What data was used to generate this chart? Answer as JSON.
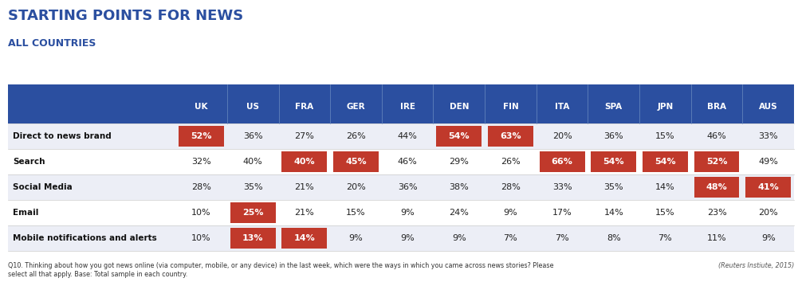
{
  "title": "STARTING POINTS FOR NEWS",
  "subtitle": "ALL COUNTRIES",
  "countries": [
    "UK",
    "US",
    "FRA",
    "GER",
    "IRE",
    "DEN",
    "FIN",
    "ITA",
    "SPA",
    "JPN",
    "BRA",
    "AUS"
  ],
  "rows": [
    {
      "label": "Direct to news brand",
      "values": [
        52,
        36,
        27,
        26,
        44,
        54,
        63,
        20,
        36,
        15,
        46,
        33
      ],
      "highlighted": [
        true,
        false,
        false,
        false,
        false,
        true,
        true,
        false,
        false,
        false,
        false,
        false
      ]
    },
    {
      "label": "Search",
      "values": [
        32,
        40,
        40,
        45,
        46,
        29,
        26,
        66,
        54,
        54,
        52,
        49
      ],
      "highlighted": [
        false,
        false,
        true,
        true,
        false,
        false,
        false,
        true,
        true,
        true,
        true,
        false
      ]
    },
    {
      "label": "Social Media",
      "values": [
        28,
        35,
        21,
        20,
        36,
        38,
        28,
        33,
        35,
        14,
        48,
        41
      ],
      "highlighted": [
        false,
        false,
        false,
        false,
        false,
        false,
        false,
        false,
        false,
        false,
        true,
        true
      ]
    },
    {
      "label": "Email",
      "values": [
        10,
        25,
        21,
        15,
        9,
        24,
        9,
        17,
        14,
        15,
        23,
        20
      ],
      "highlighted": [
        false,
        true,
        false,
        false,
        false,
        false,
        false,
        false,
        false,
        false,
        false,
        false
      ]
    },
    {
      "label": "Mobile notifications and alerts",
      "values": [
        10,
        13,
        14,
        9,
        9,
        9,
        7,
        7,
        8,
        7,
        11,
        9
      ],
      "highlighted": [
        false,
        true,
        true,
        false,
        false,
        false,
        false,
        false,
        false,
        false,
        false,
        false
      ]
    }
  ],
  "header_bg": "#2B4FA0",
  "highlight_color": "#C0392B",
  "normal_text_color": "#222222",
  "highlight_text_color": "#ffffff",
  "row_bg_even": "#ECEEF6",
  "row_bg_odd": "#FFFFFF",
  "label_color": "#111111",
  "footer_text": "Q10. Thinking about how you got news online (via computer, mobile, or any device) in the last week, which were the ways in which you came across news stories? Please\nselect all that apply. Base: Total sample in each country.",
  "footer_right": "(Reuters Instiute, 2015)",
  "title_color": "#2B4FA0",
  "subtitle_color": "#2B4FA0"
}
